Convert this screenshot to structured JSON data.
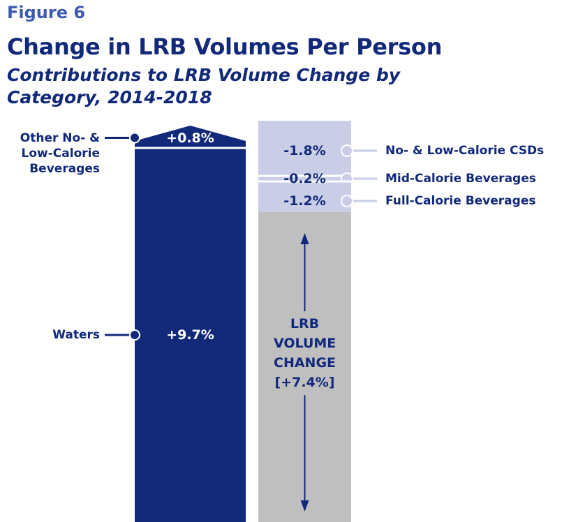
{
  "chart_data": {
    "type": "waterfall",
    "figure_label": "Figure 6",
    "title": "Change in LRB Volumes Per Person",
    "subtitle": "Contributions to LRB Volume Change by Category, 2014-2018",
    "increases": {
      "categories": [
        "Waters",
        "Other No- & Low-Calorie Beverages"
      ],
      "values": [
        9.7,
        0.8
      ],
      "value_labels": [
        "+9.7%",
        "+0.8%"
      ],
      "color": "#12297a"
    },
    "decreases": {
      "categories": [
        "No- & Low-Calorie CSDs",
        "Mid-Calorie Beverages",
        "Full-Calorie Beverages"
      ],
      "values": [
        -1.8,
        -0.2,
        -1.2
      ],
      "value_labels": [
        "-1.8%",
        "-0.2%",
        "-1.2%"
      ],
      "color": "#c9cde6"
    },
    "total": {
      "label": "LRB VOLUME CHANGE",
      "value": 7.4,
      "value_label": "[+7.4%]",
      "color": "#bfbfbf"
    }
  }
}
